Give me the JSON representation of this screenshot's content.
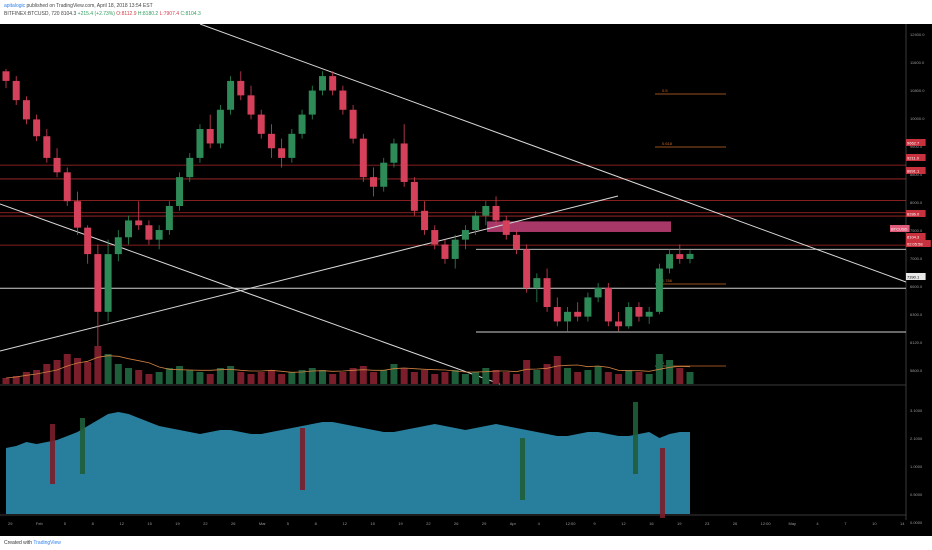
{
  "header": {
    "publisher": "apitalogic",
    "published_text": "published on TradingView.com, April 18, 2018 13:54 EST",
    "symbol_line": "BITFINEX:BTCUSD, 720",
    "last": "8104.3",
    "change": "+215.4 (+2.73%)",
    "ohlc": [
      "O:8112.9",
      "H:8180.2",
      "L:7907.4",
      "C:8104.3"
    ]
  },
  "footer": {
    "created_with": "Created with",
    "brand": "TradingView"
  },
  "colors": {
    "bull": "#2e8b57",
    "bear": "#d5415a",
    "bull_vol": "#1f5e3a",
    "bear_vol": "#7a1e2c",
    "resistance": "#b02a2a",
    "trendline": "#d9d9d9",
    "fib": "#c86a28",
    "supply_zone": "#c4427a",
    "volume_ma": "#d08040",
    "indicator_area": "#2f95b8"
  },
  "chart_data": {
    "type": "candlestick",
    "symbol": "BITFINEX:BTCUSD",
    "timeframe": "720",
    "price_axis": {
      "range": [
        5400,
        12800
      ],
      "tick_labels": [
        "12400.0",
        "11600.0",
        "10800.0",
        "10000.0",
        "9600.0",
        "8800.0",
        "8000.0",
        "7500.0",
        "7000.0",
        "6600.0",
        "6300.0",
        "6120.0",
        "5800.0"
      ]
    },
    "x_axis": {
      "tick_labels": [
        "29",
        "Feb",
        "5",
        "8",
        "12",
        "15",
        "19",
        "22",
        "26",
        "Mar",
        "5",
        "8",
        "12",
        "15",
        "19",
        "22",
        "26",
        "29",
        "Apr",
        "4",
        "12:00",
        "9",
        "12",
        "16",
        "19",
        "23",
        "26",
        "12:00",
        "May",
        "4",
        "7",
        "10",
        "14"
      ]
    },
    "badges": [
      {
        "label": "9662.7",
        "price": 9662.7,
        "style": "red"
      },
      {
        "label": "9211.0",
        "price": 9211.0,
        "style": "red"
      },
      {
        "label": "8891.1",
        "price": 8891.1,
        "style": "red"
      },
      {
        "label": "8286.0",
        "price": 8286.0,
        "style": "red"
      },
      {
        "label": "BTCUSD",
        "price": 8120,
        "style": "pink"
      },
      {
        "label": "8104.3",
        "price": 8104.3,
        "style": "red"
      },
      {
        "label": "02:05:58",
        "price": 8000,
        "style": "red"
      },
      {
        "label": "7390.1",
        "price": 7390.1,
        "style": "white"
      }
    ],
    "horizontal_levels": [
      9950,
      9662.7,
      9211.0,
      8960,
      8891.1,
      8286.0,
      7390.1,
      6480
    ],
    "fib_labels": [
      "0.5",
      "0.618",
      "0.786",
      "1"
    ],
    "price": [
      [
        11900,
        11950,
        11550,
        11700
      ],
      [
        11700,
        11800,
        11200,
        11300
      ],
      [
        11300,
        11380,
        10800,
        10900
      ],
      [
        10900,
        11000,
        10450,
        10550
      ],
      [
        10550,
        10700,
        10000,
        10100
      ],
      [
        10100,
        10300,
        9700,
        9800
      ],
      [
        9800,
        9900,
        9100,
        9200
      ],
      [
        9200,
        9400,
        8500,
        8650
      ],
      [
        8650,
        8700,
        7900,
        8100
      ],
      [
        8100,
        8300,
        6100,
        6900
      ],
      [
        6900,
        8400,
        6700,
        8100
      ],
      [
        8100,
        8600,
        7950,
        8450
      ],
      [
        8450,
        8900,
        8300,
        8800
      ],
      [
        8800,
        9200,
        8600,
        8700
      ],
      [
        8700,
        8800,
        8300,
        8400
      ],
      [
        8400,
        8700,
        8200,
        8600
      ],
      [
        8600,
        9200,
        8500,
        9100
      ],
      [
        9100,
        9800,
        9000,
        9700
      ],
      [
        9700,
        10200,
        9600,
        10100
      ],
      [
        10100,
        10800,
        10000,
        10700
      ],
      [
        10700,
        11000,
        10300,
        10400
      ],
      [
        10400,
        11200,
        10300,
        11100
      ],
      [
        11100,
        11800,
        11000,
        11700
      ],
      [
        11700,
        11900,
        11300,
        11400
      ],
      [
        11400,
        11600,
        10900,
        11000
      ],
      [
        11000,
        11100,
        10500,
        10600
      ],
      [
        10600,
        10800,
        10100,
        10300
      ],
      [
        10300,
        10500,
        9900,
        10100
      ],
      [
        10100,
        10700,
        10000,
        10600
      ],
      [
        10600,
        11100,
        10500,
        11000
      ],
      [
        11000,
        11600,
        10900,
        11500
      ],
      [
        11500,
        11900,
        11400,
        11800
      ],
      [
        11800,
        11900,
        11400,
        11500
      ],
      [
        11500,
        11600,
        11000,
        11100
      ],
      [
        11100,
        11200,
        10400,
        10500
      ],
      [
        10500,
        10600,
        9600,
        9700
      ],
      [
        9700,
        9900,
        9300,
        9500
      ],
      [
        9500,
        10100,
        9400,
        10000
      ],
      [
        10000,
        10500,
        9900,
        10400
      ],
      [
        10400,
        10800,
        9500,
        9600
      ],
      [
        9600,
        9700,
        8900,
        9000
      ],
      [
        9000,
        9200,
        8500,
        8600
      ],
      [
        8600,
        8700,
        8200,
        8300
      ],
      [
        8300,
        8400,
        7900,
        8000
      ],
      [
        8000,
        8500,
        7800,
        8400
      ],
      [
        8400,
        8700,
        8200,
        8600
      ],
      [
        8600,
        9000,
        8500,
        8900
      ],
      [
        8900,
        9200,
        8700,
        9100
      ],
      [
        9100,
        9300,
        8700,
        8800
      ],
      [
        8800,
        8900,
        8400,
        8500
      ],
      [
        8500,
        8600,
        8100,
        8200
      ],
      [
        8200,
        8300,
        7300,
        7400
      ],
      [
        7400,
        7700,
        7100,
        7600
      ],
      [
        7600,
        7800,
        6900,
        7000
      ],
      [
        7000,
        7200,
        6600,
        6700
      ],
      [
        6700,
        7000,
        6500,
        6900
      ],
      [
        6900,
        7100,
        6700,
        6800
      ],
      [
        6800,
        7300,
        6700,
        7200
      ],
      [
        7200,
        7500,
        7100,
        7400
      ],
      [
        7400,
        7500,
        6600,
        6700
      ],
      [
        6700,
        6900,
        6500,
        6600
      ],
      [
        6600,
        7100,
        6550,
        7000
      ],
      [
        7000,
        7100,
        6700,
        6800
      ],
      [
        6800,
        7000,
        6650,
        6900
      ],
      [
        6900,
        7900,
        6850,
        7800
      ],
      [
        7800,
        8200,
        7700,
        8100
      ],
      [
        8100,
        8300,
        7900,
        8000
      ],
      [
        8000,
        8180,
        7907,
        8104
      ]
    ],
    "volume_ma_shown": true,
    "indicator_type": "area"
  }
}
